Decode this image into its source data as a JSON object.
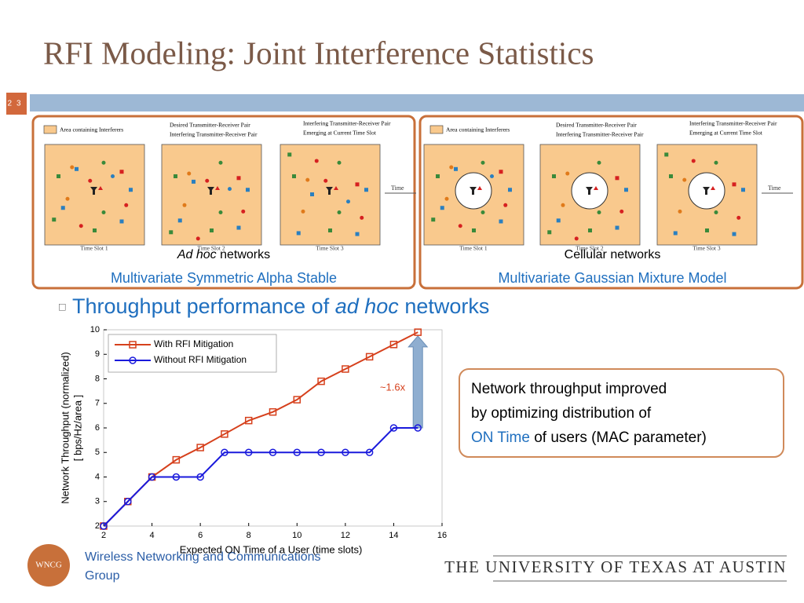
{
  "title": "RFI Modeling: Joint Interference Statistics",
  "slide_number": "23",
  "panels": [
    {
      "legend": [
        "Area containing Interferers",
        "Desired Transmitter-Receiver Pair",
        "Interfering Transmitter-Receiver Pair",
        "Interfering Transmitter-Receiver Pair",
        "Emerging at Current Time Slot"
      ],
      "time_slots": [
        "Time Slot 1",
        "Time Slot 2",
        "Time Slot 3"
      ],
      "time_label": "Time",
      "caption_italic": "Ad hoc",
      "caption": "networks",
      "model": "Multivariate Symmetric Alpha Stable"
    },
    {
      "legend": [
        "Area containing Interferers",
        "Desired Transmitter-Receiver Pair",
        "Interfering Transmitter-Receiver Pair",
        "Interfering Transmitter-Receiver Pair",
        "Emerging at Current Time Slot"
      ],
      "time_slots": [
        "Time Slot 1",
        "Time Slot 2",
        "Time Slot 3"
      ],
      "time_label": "Time",
      "caption": "Cellular networks",
      "model": "Multivariate Gaussian Mixture Model"
    }
  ],
  "bullet": {
    "text": "Throughput performance of",
    "italic": "ad hoc",
    "rest": "networks"
  },
  "callout": {
    "line1": "Network throughput improved",
    "line2": "by optimizing distribution of",
    "highlight": "ON Time",
    "line3": "of users (MAC parameter)"
  },
  "footer": {
    "logo": "WNCG",
    "group_line1": "Wireless Networking and Communications",
    "group_line2": "Group",
    "university": "THE UNIVERSITY OF TEXAS AT AUSTIN"
  },
  "chart_data": {
    "type": "line",
    "xlabel": "Expected ON Time of a User (time slots)",
    "ylabel": [
      "Network Throughput (normalized)",
      "[ bps/Hz/area ]"
    ],
    "annotation": "~1.6x",
    "x": [
      2,
      3,
      4,
      5,
      6,
      7,
      8,
      9,
      10,
      11,
      12,
      13,
      14,
      15
    ],
    "series": [
      {
        "name": "With RFI Mitigation",
        "color": "#d6401c",
        "marker": "square",
        "values": [
          2,
          3,
          4,
          4.7,
          5.2,
          5.75,
          6.3,
          6.65,
          7.15,
          7.9,
          8.4,
          8.9,
          9.4,
          9.9
        ]
      },
      {
        "name": "Without RFI Mitigation",
        "color": "#1a1adc",
        "marker": "circle",
        "values": [
          2,
          3,
          4,
          4,
          4,
          5,
          5,
          5,
          5,
          5,
          5,
          5,
          6,
          6
        ]
      }
    ],
    "xlim": [
      2,
      16
    ],
    "ylim": [
      2,
      10
    ],
    "xticks": [
      2,
      4,
      6,
      8,
      10,
      12,
      14,
      16
    ],
    "yticks": [
      2,
      3,
      4,
      5,
      6,
      7,
      8,
      9,
      10
    ],
    "legend": "upper left"
  }
}
